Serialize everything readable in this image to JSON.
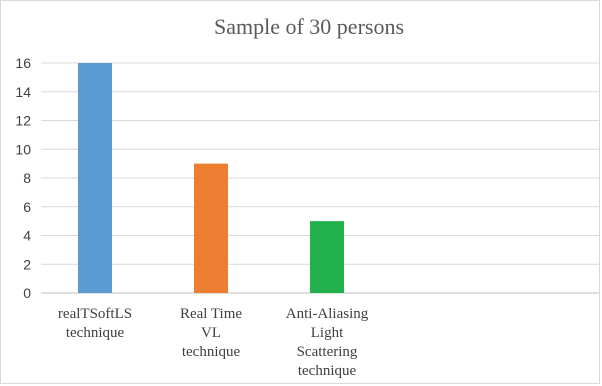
{
  "chart_data": {
    "type": "bar",
    "title": "Sample of 30 persons",
    "categories": [
      [
        "realTSoftLS",
        "technique"
      ],
      [
        "Real Time",
        "VL",
        "technique"
      ],
      [
        "Anti-Aliasing",
        "Light",
        "Scattering",
        "technique"
      ]
    ],
    "values": [
      16,
      9,
      5
    ],
    "colors": [
      "#5b9bd5",
      "#ed7d31",
      "#22b14c"
    ],
    "ylim": [
      0,
      16
    ],
    "yticks": [
      0,
      2,
      4,
      6,
      8,
      10,
      12,
      14,
      16
    ],
    "grid": true,
    "legend": "none"
  }
}
